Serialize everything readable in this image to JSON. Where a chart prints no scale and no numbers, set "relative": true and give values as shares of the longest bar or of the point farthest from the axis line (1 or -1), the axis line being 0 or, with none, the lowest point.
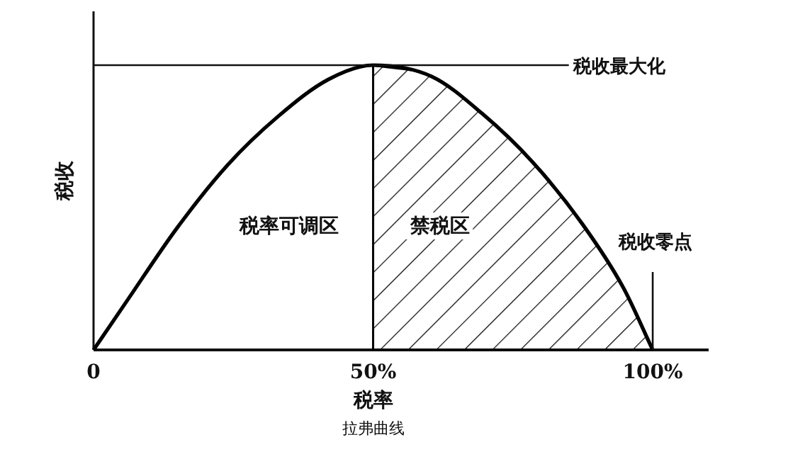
{
  "chart_data": {
    "type": "line",
    "relative": true,
    "xlabel": "税率",
    "ylabel": "税收",
    "xlim": [
      0,
      110
    ],
    "xticks": [
      {
        "value": 0,
        "label": "0"
      },
      {
        "value": 50,
        "label": "50%"
      },
      {
        "value": 100,
        "label": "100%"
      }
    ],
    "series": [
      {
        "type": "line",
        "color": "#000000",
        "x": [
          0,
          5.9,
          15,
          24,
          33,
          42,
          50,
          60.5,
          69.5,
          78.5,
          87.5,
          94.7,
          100
        ],
        "values": [
          0,
          0.17,
          0.43,
          0.65,
          0.82,
          0.95,
          1,
          0.96,
          0.83,
          0.66,
          0.44,
          0.22,
          0
        ]
      },
      {
        "type": "area",
        "color": "#000000",
        "x": [
          50,
          60.5,
          69.5,
          78.5,
          87.5,
          94.7,
          100
        ],
        "values": [
          1,
          0.96,
          0.83,
          0.66,
          0.44,
          0.22,
          0
        ]
      }
    ],
    "ref_lines": [
      {
        "axis": "y",
        "value": 1,
        "label": "税收最大化"
      },
      {
        "axis": "x",
        "value": 100,
        "label": "税收零点"
      }
    ],
    "annotations": [
      "税率可调区",
      "禁税区",
      "拉弗曲线"
    ],
    "line_style": "solid"
  }
}
